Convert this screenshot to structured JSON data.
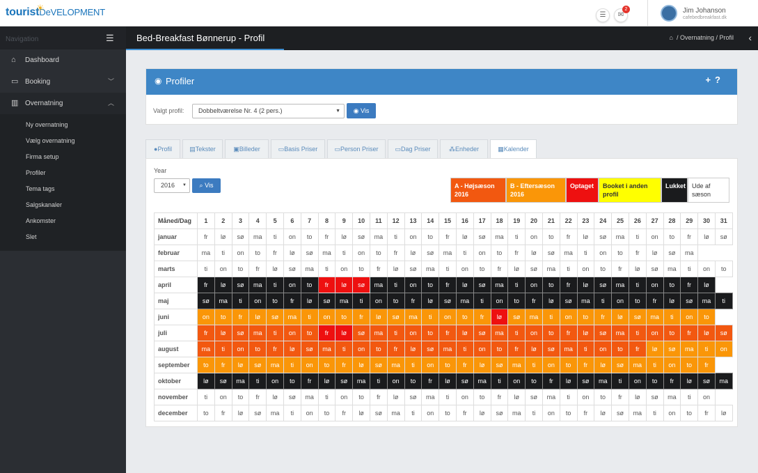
{
  "logo": {
    "line1": "tourist",
    "line2": "DeVELOPMENT"
  },
  "topbar": {
    "mail_badge": "2"
  },
  "user": {
    "name": "Jim Johanson",
    "email": "cafebedbreakfast.dk"
  },
  "sidebar": {
    "nav_title": "Navigation",
    "items": [
      {
        "label": "Dashboard"
      },
      {
        "label": "Booking"
      },
      {
        "label": "Overnatning"
      }
    ],
    "subitems": [
      "Ny overnatning",
      "Vælg overnatning",
      "Firma setup",
      "Profiler",
      "Tema tags",
      "Salgskanaler",
      "Ankomster",
      "Slet"
    ]
  },
  "page": {
    "title": "Bed-Breakfast Bønnerup - Profil",
    "breadcrumb": "/  Overnatning  /  Profil"
  },
  "profiler": {
    "title": "Profiler",
    "label": "Valgt profil:",
    "selected": "Dobbeltværelse Nr. 4 (2 pers.)",
    "button": "Vis"
  },
  "tabs": [
    {
      "label": "Profil",
      "icon": "user-icon"
    },
    {
      "label": "Tekster",
      "icon": "file-icon"
    },
    {
      "label": "Billeder",
      "icon": "image-icon"
    },
    {
      "label": "Basis Priser",
      "icon": "money-icon"
    },
    {
      "label": "Person Priser",
      "icon": "money-icon"
    },
    {
      "label": "Dag Priser",
      "icon": "money-icon"
    },
    {
      "label": "Enheder",
      "icon": "cubes-icon"
    },
    {
      "label": "Kalender",
      "icon": "calendar-icon"
    }
  ],
  "calendar": {
    "year_label": "Year",
    "year": "2016",
    "year_button": "Vis",
    "header_first": "Måned/Dag",
    "days": [
      "1",
      "2",
      "3",
      "4",
      "5",
      "6",
      "7",
      "8",
      "9",
      "10",
      "11",
      "12",
      "13",
      "14",
      "15",
      "16",
      "17",
      "18",
      "19",
      "20",
      "21",
      "22",
      "23",
      "24",
      "25",
      "26",
      "27",
      "28",
      "29",
      "30",
      "31"
    ],
    "legend": [
      {
        "label": "A - Højsæson 2016",
        "color": "#f25810",
        "text": "#ffffff"
      },
      {
        "label": "B - Eftersæson 2016",
        "color": "#fa9608",
        "text": "#ffffff"
      },
      {
        "label": "Optaget",
        "color": "#ee1010",
        "text": "#ffffff"
      },
      {
        "label": "Booket i anden profil",
        "color": "#ffff00",
        "text": "#333333"
      },
      {
        "label": "Lukket",
        "color": "#1a1b1d",
        "text": "#ffffff"
      },
      {
        "label": "Ude af sæson",
        "color": "#ffffff",
        "text": "#333333"
      }
    ],
    "months": [
      {
        "name": "januar",
        "days": [
          "fr",
          "lø",
          "sø",
          "ma",
          "ti",
          "on",
          "to",
          "fr",
          "lø",
          "sø",
          "ma",
          "ti",
          "on",
          "to",
          "fr",
          "lø",
          "sø",
          "ma",
          "ti",
          "on",
          "to",
          "fr",
          "lø",
          "sø",
          "ma",
          "ti",
          "on",
          "to",
          "fr",
          "lø",
          "sø"
        ],
        "status": "WWWWWWWWWWWWWWWWWWWWWWWWWWWWWWW"
      },
      {
        "name": "februar",
        "days": [
          "ma",
          "ti",
          "on",
          "to",
          "fr",
          "lø",
          "sø",
          "ma",
          "ti",
          "on",
          "to",
          "fr",
          "lø",
          "sø",
          "ma",
          "ti",
          "on",
          "to",
          "fr",
          "lø",
          "sø",
          "ma",
          "ti",
          "on",
          "to",
          "fr",
          "lø",
          "sø",
          "ma"
        ],
        "status": "WWWWWWWWWWWWWWWWWWWWWWWWWWWWW"
      },
      {
        "name": "marts",
        "days": [
          "ti",
          "on",
          "to",
          "fr",
          "lø",
          "sø",
          "ma",
          "ti",
          "on",
          "to",
          "fr",
          "lø",
          "sø",
          "ma",
          "ti",
          "on",
          "to",
          "fr",
          "lø",
          "sø",
          "ma",
          "ti",
          "on",
          "to",
          "fr",
          "lø",
          "sø",
          "ma",
          "ti",
          "on",
          "to"
        ],
        "status": "WWWWWWWWWWWWWWWWWWWWWWWWWWWWWWW"
      },
      {
        "name": "april",
        "days": [
          "fr",
          "lø",
          "sø",
          "ma",
          "ti",
          "on",
          "to",
          "fr",
          "lø",
          "sø",
          "ma",
          "ti",
          "on",
          "to",
          "fr",
          "lø",
          "sø",
          "ma",
          "ti",
          "on",
          "to",
          "fr",
          "lø",
          "sø",
          "ma",
          "ti",
          "on",
          "to",
          "fr",
          "lø"
        ],
        "status": "KKKKKKKOOOKKKKKKKKKKKKKKKKKKKK"
      },
      {
        "name": "maj",
        "days": [
          "sø",
          "ma",
          "ti",
          "on",
          "to",
          "fr",
          "lø",
          "sø",
          "ma",
          "ti",
          "on",
          "to",
          "fr",
          "lø",
          "sø",
          "ma",
          "ti",
          "on",
          "to",
          "fr",
          "lø",
          "sø",
          "ma",
          "ti",
          "on",
          "to",
          "fr",
          "lø",
          "sø",
          "ma",
          "ti"
        ],
        "status": "KKKKKKKKKKKKKKKKKKKKKKKKKKKKKKK"
      },
      {
        "name": "juni",
        "days": [
          "on",
          "to",
          "fr",
          "lø",
          "sø",
          "ma",
          "ti",
          "on",
          "to",
          "fr",
          "lø",
          "sø",
          "ma",
          "ti",
          "on",
          "to",
          "fr",
          "lø",
          "sø",
          "ma",
          "ti",
          "on",
          "to",
          "fr",
          "lø",
          "sø",
          "ma",
          "ti",
          "on",
          "to"
        ],
        "status": "BBBBBBBBBBBBBBBBBOBBBBBBBBBBBB"
      },
      {
        "name": "juli",
        "days": [
          "fr",
          "lø",
          "sø",
          "ma",
          "ti",
          "on",
          "to",
          "fr",
          "lø",
          "sø",
          "ma",
          "ti",
          "on",
          "to",
          "fr",
          "lø",
          "sø",
          "ma",
          "ti",
          "on",
          "to",
          "fr",
          "lø",
          "sø",
          "ma",
          "ti",
          "on",
          "to",
          "fr",
          "lø",
          "sø"
        ],
        "status": "AAAAAAAOOAAAAAAAAAAAAAAAAAAAAAA"
      },
      {
        "name": "august",
        "days": [
          "ma",
          "ti",
          "on",
          "to",
          "fr",
          "lø",
          "sø",
          "ma",
          "ti",
          "on",
          "to",
          "fr",
          "lø",
          "sø",
          "ma",
          "ti",
          "on",
          "to",
          "fr",
          "lø",
          "sø",
          "ma",
          "ti",
          "on",
          "to",
          "fr",
          "lø",
          "sø",
          "ma",
          "ti",
          "on"
        ],
        "status": "AAAAAAAAAAAAAAAAAAAAAAAAAABBBBB"
      },
      {
        "name": "september",
        "days": [
          "to",
          "fr",
          "lø",
          "sø",
          "ma",
          "ti",
          "on",
          "to",
          "fr",
          "lø",
          "sø",
          "ma",
          "ti",
          "on",
          "to",
          "fr",
          "lø",
          "sø",
          "ma",
          "ti",
          "on",
          "to",
          "fr",
          "lø",
          "sø",
          "ma",
          "ti",
          "on",
          "to",
          "fr"
        ],
        "status": "BBBBBBBBBBBBBBBBBBBBBBBBBBBBBB"
      },
      {
        "name": "oktober",
        "days": [
          "lø",
          "sø",
          "ma",
          "ti",
          "on",
          "to",
          "fr",
          "lø",
          "sø",
          "ma",
          "ti",
          "on",
          "to",
          "fr",
          "lø",
          "sø",
          "ma",
          "ti",
          "on",
          "to",
          "fr",
          "lø",
          "sø",
          "ma",
          "ti",
          "on",
          "to",
          "fr",
          "lø",
          "sø",
          "ma"
        ],
        "status": "KKKKKKKKKKKKKKKKKKKKKKKKKKKKKKK"
      },
      {
        "name": "november",
        "days": [
          "ti",
          "on",
          "to",
          "fr",
          "lø",
          "sø",
          "ma",
          "ti",
          "on",
          "to",
          "fr",
          "lø",
          "sø",
          "ma",
          "ti",
          "on",
          "to",
          "fr",
          "lø",
          "sø",
          "ma",
          "ti",
          "on",
          "to",
          "fr",
          "lø",
          "sø",
          "ma",
          "ti",
          "on"
        ],
        "status": "WWWWWWWWWWWWWWWWWWWWWWWWWWWWWW"
      },
      {
        "name": "december",
        "days": [
          "to",
          "fr",
          "lø",
          "sø",
          "ma",
          "ti",
          "on",
          "to",
          "fr",
          "lø",
          "sø",
          "ma",
          "ti",
          "on",
          "to",
          "fr",
          "lø",
          "sø",
          "ma",
          "ti",
          "on",
          "to",
          "fr",
          "lø",
          "sø",
          "ma",
          "ti",
          "on",
          "to",
          "fr",
          "lø"
        ],
        "status": "WWWWWWWWWWWWWWWWWWWWWWWWWWWWWWW"
      }
    ]
  }
}
